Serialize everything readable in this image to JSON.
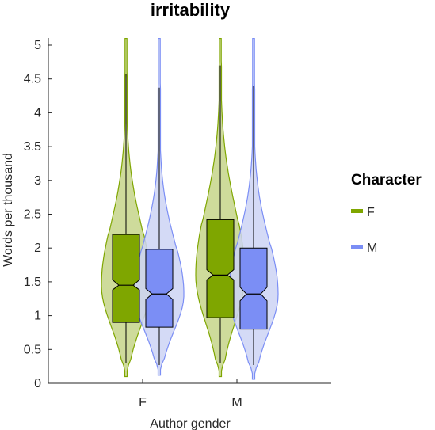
{
  "chart_data": {
    "type": "violin-box",
    "title": "irritability",
    "xlabel": "Author gender",
    "ylabel": "Words per thousand",
    "categories": [
      "F",
      "M"
    ],
    "ylim": [
      0,
      5.1
    ],
    "yticks": [
      0,
      0.5,
      1,
      1.5,
      2,
      2.5,
      3,
      3.5,
      4,
      4.5,
      5
    ],
    "ytick_labels": [
      "0",
      "0.5",
      "1",
      "1.5",
      "2",
      "2.5",
      "3",
      "3.5",
      "4",
      "4.5",
      "5"
    ],
    "legend": {
      "title": "Character",
      "placement": "right"
    },
    "series": [
      {
        "name": "F",
        "color": "#7fa600",
        "fill": "#c5d58a",
        "stats": [
          {
            "category": "F",
            "whisker_low": 0.3,
            "q1": 0.9,
            "median": 1.45,
            "q3": 2.2,
            "whisker_high": 4.57,
            "notch": [
              1.38,
              1.53
            ],
            "violin_min": 0.1,
            "violin_max": 5.1
          },
          {
            "category": "M",
            "whisker_low": 0.3,
            "q1": 0.97,
            "median": 1.6,
            "q3": 2.42,
            "whisker_high": 4.7,
            "notch": [
              1.53,
              1.68
            ],
            "violin_min": 0.1,
            "violin_max": 5.1
          }
        ]
      },
      {
        "name": "M",
        "color": "#7b8ef5",
        "fill": "#cdd3f5",
        "stats": [
          {
            "category": "F",
            "whisker_low": 0.27,
            "q1": 0.83,
            "median": 1.32,
            "q3": 1.98,
            "whisker_high": 4.37,
            "notch": [
              1.24,
              1.4
            ],
            "violin_min": 0.12,
            "violin_max": 5.1
          },
          {
            "category": "M",
            "whisker_low": 0.27,
            "q1": 0.8,
            "median": 1.32,
            "q3": 2.0,
            "whisker_high": 4.4,
            "notch": [
              1.22,
              1.42
            ],
            "violin_min": 0.06,
            "violin_max": 5.1
          }
        ]
      }
    ]
  }
}
